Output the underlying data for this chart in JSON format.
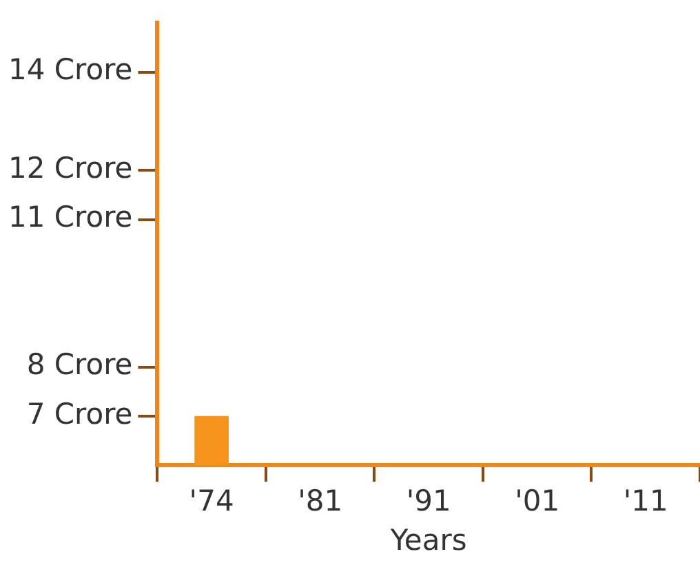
{
  "chart_data": {
    "type": "bar",
    "xlabel": "Years",
    "categories": [
      "'74",
      "'81",
      "'91",
      "'01",
      "'11"
    ],
    "values": [
      7,
      null,
      null,
      null,
      null
    ],
    "color": "#f7941d",
    "ylim": [
      6,
      15
    ],
    "yticks": [
      {
        "value": 7,
        "label": "7 Crore"
      },
      {
        "value": 8,
        "label": "8 Crore"
      },
      {
        "value": 11,
        "label": "11 Crore"
      },
      {
        "value": 12,
        "label": "12 Crore"
      },
      {
        "value": 14,
        "label": "14 Crore"
      }
    ],
    "grid": false
  }
}
